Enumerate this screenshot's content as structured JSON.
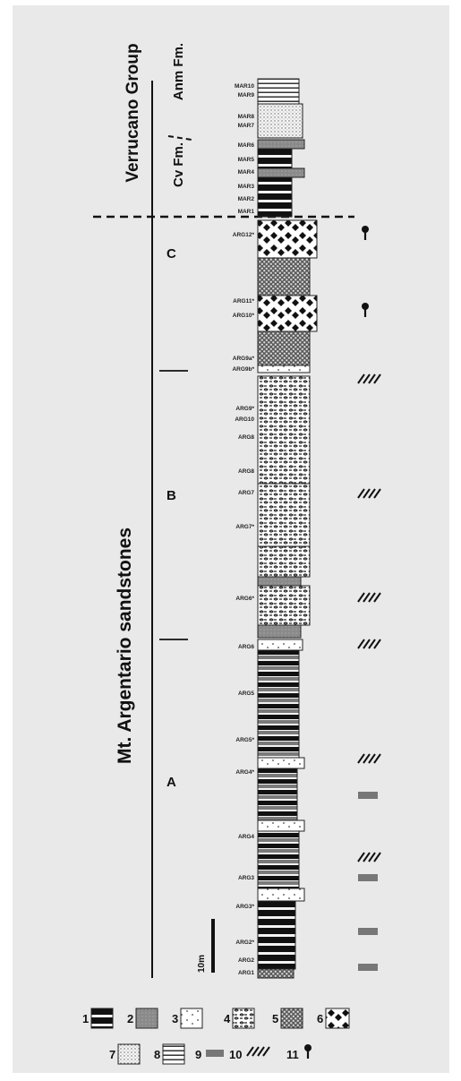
{
  "group_title": "Verrucano Group",
  "formations": {
    "upper": "Anm Fm.",
    "lower": "Cv Fm."
  },
  "unit_title": "Mt. Argentario sandstones",
  "units": [
    "C",
    "B",
    "A"
  ],
  "scale_bar_label": "10m",
  "samples": [
    "MAR10",
    "MAR9",
    "MAR8",
    "MAR7",
    "MAR6",
    "MAR5",
    "MAR4",
    "MAR3",
    "MAR2",
    "MAR1",
    "ARG12*",
    "ARG11*",
    "ARG10*",
    "ARG9a*",
    "ARG9b*",
    "ARG9*",
    "ARG10",
    "ARG8",
    "ARG8",
    "ARG7",
    "ARG7*",
    "ARG6*",
    "ARG6",
    "ARG5",
    "ARG5*",
    "ARG4*",
    "ARG4",
    "ARG3",
    "ARG3*",
    "ARG2*",
    "ARG2",
    "ARG1"
  ],
  "legend": [
    {
      "num": "1",
      "pattern": "black-bands"
    },
    {
      "num": "2",
      "pattern": "grey-fill"
    },
    {
      "num": "3",
      "pattern": "dotted"
    },
    {
      "num": "4",
      "pattern": "cross-stitch"
    },
    {
      "num": "5",
      "pattern": "dense-dots"
    },
    {
      "num": "6",
      "pattern": "black-diamonds"
    },
    {
      "num": "7",
      "pattern": "fine-stipple"
    },
    {
      "num": "8",
      "pattern": "horizontal-lines"
    },
    {
      "num": "9",
      "pattern": "grey-bar"
    },
    {
      "num": "10",
      "pattern": "cross-bedding"
    },
    {
      "num": "11",
      "pattern": "plant-fossil"
    }
  ]
}
